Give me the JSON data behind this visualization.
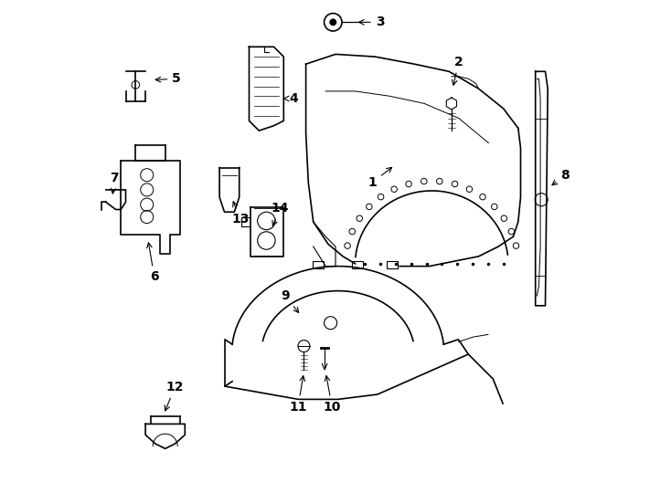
{
  "background_color": "#ffffff",
  "line_color": "#000000",
  "label_color": "#000000",
  "figsize": [
    7.34,
    5.4
  ],
  "dpi": 100
}
